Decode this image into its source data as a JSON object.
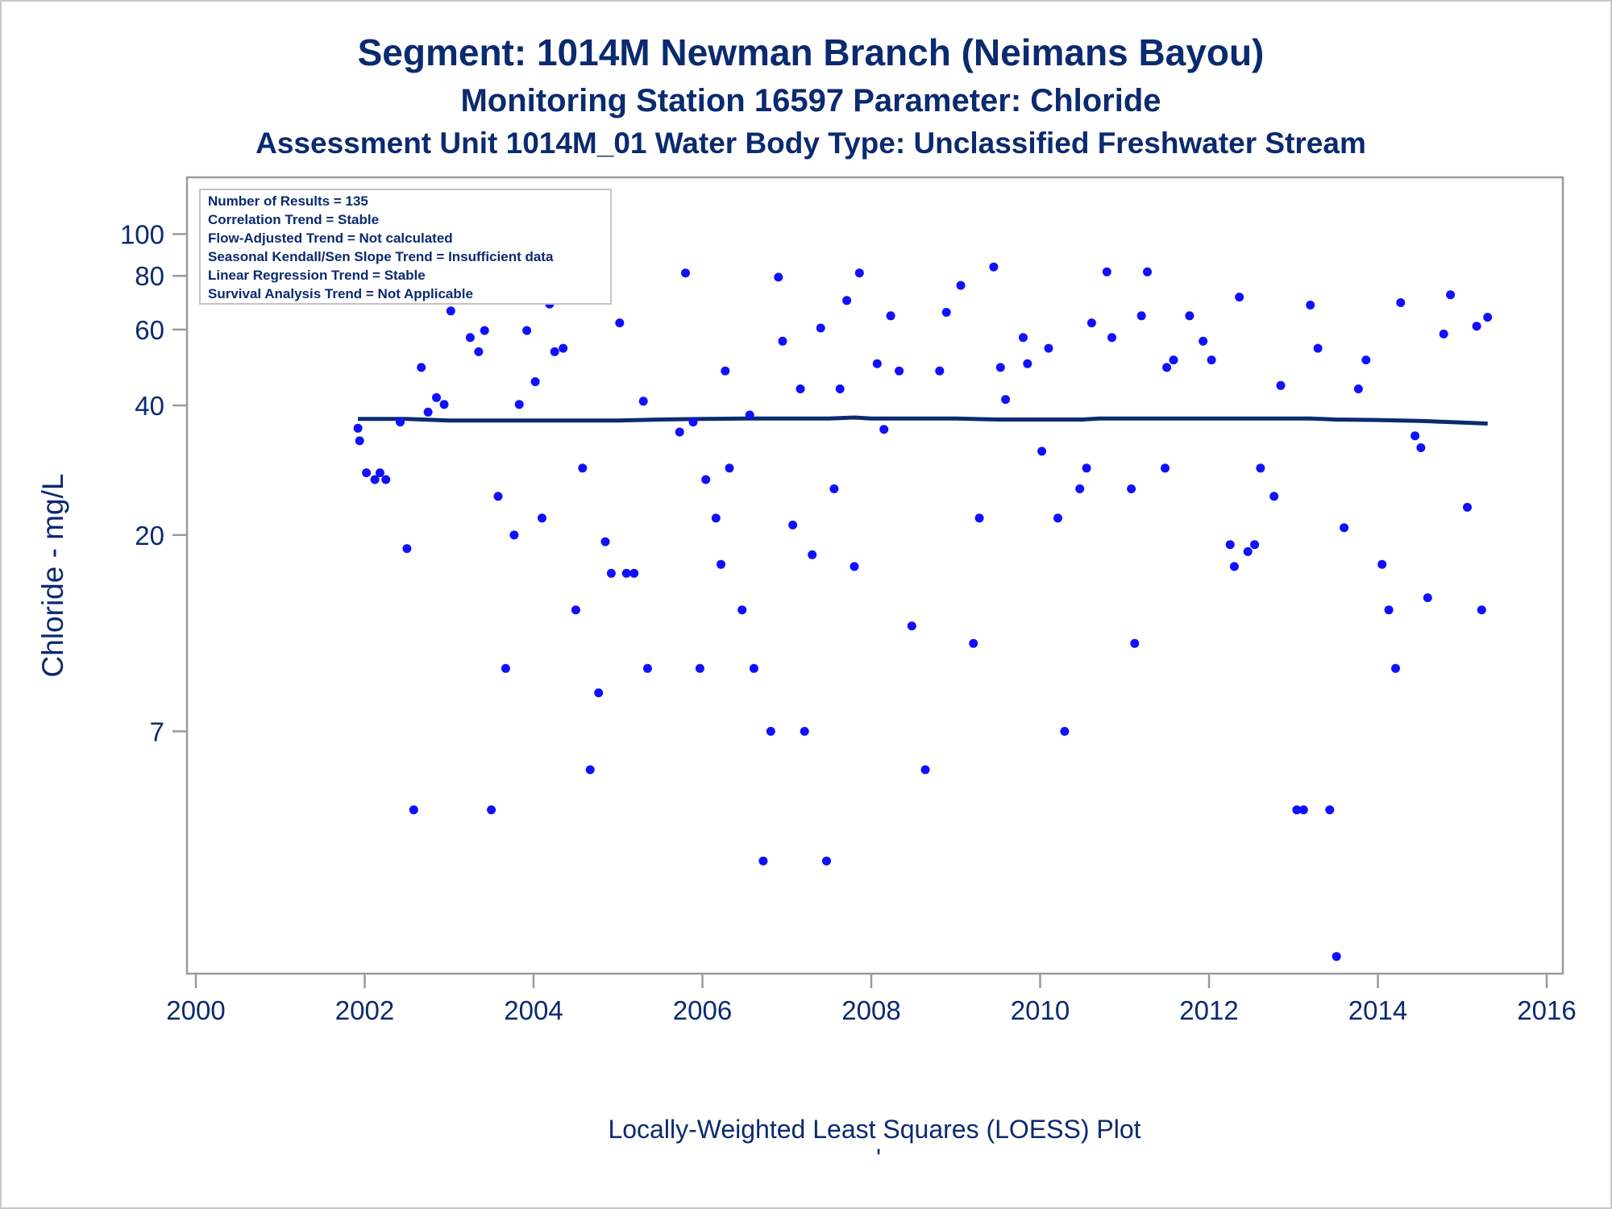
{
  "chart_data": {
    "type": "scatter",
    "title": "Segment: 1014M  Newman Branch (Neimans Bayou)",
    "subtitle": "Monitoring Station 16597 Parameter: Chloride",
    "subtitle2": "Assessment Unit 1014M_01   Water Body Type: Unclassified Freshwater Stream",
    "xlabel": "",
    "ylabel": "Chloride - mg/L",
    "footnote": "Locally-Weighted Least Squares (LOESS) Plot",
    "footnote_mark": "'",
    "xlim": [
      2000,
      2016
    ],
    "ylim": [
      2.0,
      115
    ],
    "yscale": "log",
    "x_ticks": [
      2000,
      2002,
      2004,
      2006,
      2008,
      2010,
      2012,
      2014,
      2016
    ],
    "y_ticks": [
      7,
      20,
      40,
      60,
      80,
      100
    ],
    "grid": false,
    "legend": "none",
    "point_color": "#1010ff",
    "line_color": "#0b2a6f",
    "stats": [
      "Number of Results = 135",
      "Correlation Trend = Stable",
      "Flow-Adjusted Trend = Not calculated",
      "Seasonal Kendall/Sen Slope Trend = Insufficient data",
      "Linear Regression Trend = Stable",
      "Survival Analysis Trend = Not Applicable"
    ],
    "series": [
      {
        "kind": "points",
        "x": [
          2001.92,
          2001.94,
          2002.02,
          2002.12,
          2002.18,
          2002.25,
          2002.33,
          2002.42,
          2002.5,
          2002.58,
          2002.67,
          2002.75,
          2002.85,
          2002.94,
          2003.02,
          2003.1,
          2003.19,
          2003.25,
          2003.35,
          2003.42,
          2003.5,
          2003.58,
          2003.67,
          2003.77,
          2003.83,
          2003.92,
          2004.02,
          2004.1,
          2004.19,
          2004.25,
          2004.35,
          2004.42,
          2004.5,
          2004.58,
          2004.67,
          2004.77,
          2004.85,
          2004.92,
          2005.02,
          2005.1,
          2005.19,
          2005.3,
          2005.35,
          2005.73,
          2005.8,
          2005.89,
          2005.97,
          2006.04,
          2006.16,
          2006.22,
          2006.27,
          2006.32,
          2006.47,
          2006.56,
          2006.61,
          2006.72,
          2006.81,
          2006.9,
          2006.95,
          2007.07,
          2007.16,
          2007.21,
          2007.3,
          2007.4,
          2007.47,
          2007.56,
          2007.63,
          2007.71,
          2007.8,
          2007.86,
          2008.07,
          2008.15,
          2008.23,
          2008.33,
          2008.48,
          2008.64,
          2008.81,
          2008.89,
          2009.06,
          2009.21,
          2009.28,
          2009.45,
          2009.53,
          2009.59,
          2009.8,
          2009.85,
          2010.02,
          2010.1,
          2010.21,
          2010.29,
          2010.47,
          2010.55,
          2010.61,
          2010.79,
          2010.85,
          2011.08,
          2011.12,
          2011.2,
          2011.27,
          2011.48,
          2011.5,
          2011.58,
          2011.77,
          2011.93,
          2012.03,
          2012.25,
          2012.3,
          2012.36,
          2012.46,
          2012.54,
          2012.61,
          2012.77,
          2012.85,
          2013.04,
          2013.12,
          2013.2,
          2013.29,
          2013.43,
          2013.51,
          2013.6,
          2013.77,
          2013.86,
          2014.05,
          2014.13,
          2014.21,
          2014.27,
          2014.44,
          2014.51,
          2014.59,
          2014.78,
          2014.86,
          2015.06,
          2015.17,
          2015.23,
          2015.3
        ],
        "y": [
          35.4,
          33.1,
          27.9,
          26.9,
          27.9,
          26.9,
          112.1,
          36.6,
          18.6,
          4.6,
          49.0,
          38.6,
          41.7,
          40.2,
          66.3,
          92.9,
          76.7,
          57.5,
          53.3,
          59.7,
          4.6,
          24.6,
          9.8,
          20.0,
          40.2,
          59.7,
          45.4,
          21.9,
          68.8,
          53.3,
          54.3,
          78.4,
          13.4,
          28.6,
          5.7,
          8.6,
          19.3,
          16.3,
          62.2,
          16.3,
          16.3,
          40.9,
          9.8,
          34.7,
          81.2,
          36.6,
          9.8,
          26.9,
          21.9,
          17.1,
          48.1,
          28.6,
          13.4,
          38.0,
          9.8,
          3.5,
          7.0,
          79.4,
          56.4,
          21.1,
          43.7,
          7.0,
          18.0,
          60.5,
          3.5,
          25.6,
          43.7,
          70.1,
          16.9,
          81.2,
          50.0,
          35.2,
          64.6,
          48.1,
          12.3,
          5.7,
          48.1,
          65.8,
          76.0,
          11.2,
          21.9,
          83.9,
          49.0,
          41.3,
          57.5,
          50.0,
          31.3,
          54.3,
          21.9,
          7.0,
          25.6,
          28.6,
          62.2,
          81.7,
          57.5,
          25.6,
          11.2,
          64.6,
          81.7,
          28.6,
          49.0,
          51.0,
          64.6,
          56.4,
          51.0,
          19.0,
          16.9,
          71.4,
          18.3,
          19.0,
          28.6,
          24.6,
          44.5,
          4.6,
          4.6,
          68.4,
          54.3,
          4.6,
          2.1,
          20.8,
          43.7,
          51.0,
          17.1,
          13.4,
          9.8,
          69.3,
          34.0,
          31.9,
          14.3,
          58.6,
          72.3,
          23.2,
          61.1,
          13.4,
          64.1
        ]
      },
      {
        "kind": "loess",
        "x": [
          2001.92,
          2002.5,
          2003.0,
          2004.0,
          2005.0,
          2005.5,
          2006.0,
          2006.5,
          2007.5,
          2007.8,
          2008.0,
          2009.0,
          2009.5,
          2010.0,
          2010.5,
          2010.7,
          2011.0,
          2012.0,
          2012.5,
          2013.0,
          2013.2,
          2013.5,
          2014.0,
          2014.5,
          2015.0,
          2015.3
        ],
        "y": [
          37.2,
          37.2,
          36.9,
          36.9,
          36.9,
          37.1,
          37.2,
          37.3,
          37.3,
          37.5,
          37.3,
          37.3,
          37.1,
          37.1,
          37.1,
          37.3,
          37.3,
          37.3,
          37.3,
          37.3,
          37.3,
          37.1,
          37.0,
          36.8,
          36.5,
          36.3
        ]
      }
    ]
  }
}
